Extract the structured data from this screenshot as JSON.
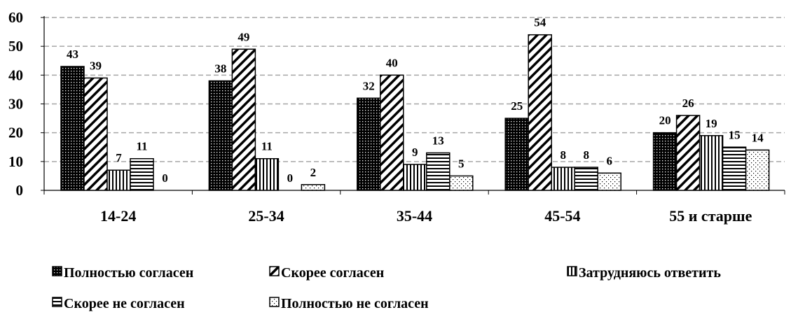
{
  "chart_data": {
    "type": "bar",
    "categories": [
      "14-24",
      "25-34",
      "35-44",
      "45-54",
      "55 и старше"
    ],
    "series": [
      {
        "name": "Полностью согласен",
        "values": [
          43,
          38,
          32,
          25,
          20
        ],
        "pattern": "dots-dense"
      },
      {
        "name": "Скорее согласен",
        "values": [
          39,
          49,
          40,
          54,
          26
        ],
        "pattern": "diagonal-stripes"
      },
      {
        "name": "Затрудняюсь ответить",
        "values": [
          7,
          11,
          9,
          8,
          19
        ],
        "pattern": "vertical-stripes"
      },
      {
        "name": "Скорее не согласен",
        "values": [
          11,
          0,
          13,
          8,
          15
        ],
        "pattern": "horizontal-stripes"
      },
      {
        "name": "Полностью не согласен",
        "values": [
          0,
          2,
          5,
          6,
          14
        ],
        "pattern": "dots-sparse"
      }
    ],
    "ylim": [
      0,
      60
    ],
    "yticks": [
      0,
      10,
      20,
      30,
      40,
      50,
      60
    ],
    "grid": true,
    "legend_position": "bottom"
  }
}
